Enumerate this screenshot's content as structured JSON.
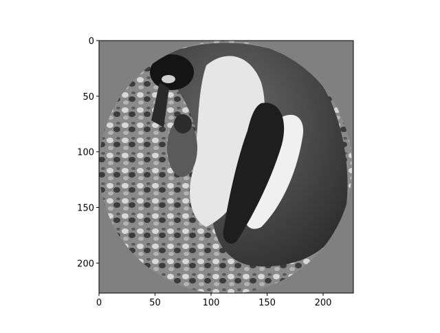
{
  "chart_data": {
    "type": "heatmap",
    "title": "",
    "xlabel": "",
    "ylabel": "",
    "xlim": [
      0,
      227
    ],
    "ylim": [
      227,
      0
    ],
    "xticks": [
      0,
      50,
      100,
      150,
      200
    ],
    "yticks": [
      0,
      50,
      100,
      150,
      200
    ],
    "xtick_labels": [
      "0",
      "50",
      "100",
      "150",
      "200"
    ],
    "ytick_labels": [
      "0",
      "50",
      "100",
      "150",
      "200"
    ],
    "image": {
      "description": "grayscale photo of a penguin with chick on rocky ground, masked to a circle",
      "colormap": "gray",
      "mask_shape": "circle",
      "mask_center": [
        113.5,
        113.5
      ],
      "mask_radius": 113.5,
      "background_value": 0.5
    },
    "grid": false,
    "legend": null
  }
}
